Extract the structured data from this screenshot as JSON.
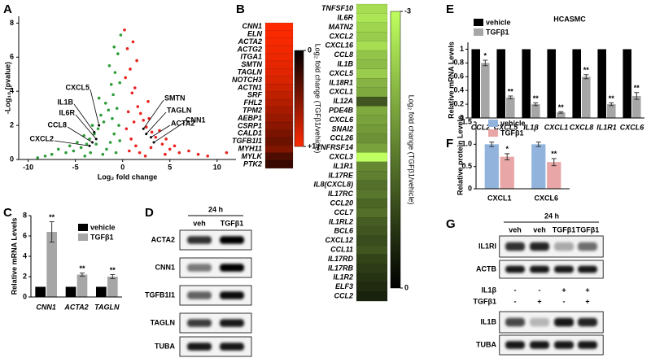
{
  "panel_labels": [
    "A",
    "B",
    "C",
    "D",
    "E",
    "F",
    "G"
  ],
  "chart_data": [
    {
      "type": "scatter",
      "xlabel": "Log₂ fold change",
      "ylabel": "-Log₁₀ (pvalue)",
      "xlim": [
        -11,
        12
      ],
      "ylim": [
        0,
        8.4
      ],
      "xticks": [
        -10,
        -5,
        0,
        5,
        10
      ],
      "yticks": [
        0,
        2,
        4,
        6,
        8
      ],
      "series": [
        {
          "color": "#2e9e3a",
          "x": [
            -0.3,
            -0.5,
            -0.2,
            -0.8,
            -1.0,
            -1.2,
            -0.6,
            -1.5,
            -1.8,
            -2.0,
            -2.3,
            -2.6,
            -3.0,
            -3.2,
            -3.5,
            -3.8,
            -4.1,
            -4.4,
            -4.8,
            -5.2,
            -5.6,
            -6.0,
            -6.8,
            -7.5,
            -8.2,
            -9.0,
            -0.4,
            -0.9,
            -1.3,
            -1.7,
            -2.1,
            -0.7,
            -1.1,
            -2.8,
            -3.4,
            -0.3,
            -1.4,
            -0.9,
            -2.5,
            -4.0
          ],
          "y": [
            4.5,
            6.2,
            7.3,
            5.1,
            3.8,
            4.4,
            3.0,
            2.9,
            3.3,
            2.2,
            2.6,
            1.8,
            1.5,
            2.0,
            1.2,
            0.9,
            1.4,
            0.7,
            1.0,
            0.5,
            0.8,
            0.4,
            0.6,
            0.3,
            0.2,
            0.1,
            2.0,
            1.5,
            1.0,
            0.6,
            0.3,
            0.4,
            2.4,
            0.9,
            0.4,
            1.1,
            5.5,
            6.6,
            3.6,
            0.2
          ]
        },
        {
          "color": "#e8231f",
          "x": [
            0.3,
            0.5,
            0.2,
            0.8,
            1.0,
            1.3,
            0.6,
            1.6,
            1.9,
            2.2,
            2.5,
            2.8,
            3.1,
            3.5,
            3.9,
            4.2,
            4.6,
            5.0,
            5.5,
            6.0,
            7.0,
            8.0,
            9.0,
            11.0,
            0.4,
            0.9,
            1.4,
            1.8,
            2.4,
            0.7,
            1.2,
            3.0,
            1.5,
            1.1,
            2.7,
            4.5
          ],
          "y": [
            4.8,
            6.5,
            7.6,
            5.3,
            3.9,
            4.2,
            2.8,
            3.1,
            2.7,
            2.3,
            1.9,
            2.4,
            1.6,
            1.3,
            1.7,
            0.9,
            1.2,
            0.6,
            0.8,
            0.4,
            0.5,
            0.3,
            0.2,
            0.4,
            1.8,
            1.2,
            0.8,
            0.4,
            0.2,
            0.5,
            2.2,
            0.7,
            5.8,
            6.9,
            3.4,
            0.3
          ]
        }
      ],
      "annotations": [
        {
          "text": "CXCL5",
          "x": -2.5,
          "y": 2.0
        },
        {
          "text": "IL1B",
          "x": -3.0,
          "y": 1.6
        },
        {
          "text": "IL6R",
          "x": -2.8,
          "y": 1.2
        },
        {
          "text": "CCL8",
          "x": -3.2,
          "y": 1.0
        },
        {
          "text": "CXCL2",
          "x": -3.5,
          "y": 0.8
        },
        {
          "text": "SMTN",
          "x": 2.2,
          "y": 1.8
        },
        {
          "text": "TAGLN",
          "x": 2.5,
          "y": 1.5
        },
        {
          "text": "ACTA2",
          "x": 3.0,
          "y": 1.3
        },
        {
          "text": "CNN1",
          "x": 3.3,
          "y": 1.0
        }
      ]
    },
    {
      "type": "bar",
      "ylabel": "Relative mRNA Levels",
      "categories": [
        "CNN1",
        "ACTA2",
        "TAGLN"
      ],
      "ylim": [
        0,
        8
      ],
      "yticks": [
        0,
        2,
        4,
        6,
        8
      ],
      "series": [
        {
          "name": "vehicle",
          "color": "#000000",
          "values": [
            1,
            1,
            1
          ]
        },
        {
          "name": "TGFβ1",
          "color": "#a6a6a6",
          "values": [
            6.4,
            2.2,
            2.0
          ],
          "errors": [
            1.0,
            0.15,
            0.2
          ],
          "significance": [
            "**",
            "**",
            "**"
          ]
        }
      ]
    },
    {
      "type": "bar",
      "title": "HCASMC",
      "ylabel": "Relative mRNA Levels",
      "categories": [
        "CCL2",
        "CXCL5",
        "IL1β",
        "CXCL1",
        "CXCL8",
        "IL1R1",
        "CXCL6"
      ],
      "ylim": [
        0,
        1.1
      ],
      "yticks": [
        0,
        0.2,
        0.4,
        0.6,
        0.8,
        1
      ],
      "series": [
        {
          "name": "vehicle",
          "color": "#000000",
          "values": [
            1,
            1,
            1,
            1,
            1,
            1,
            1
          ]
        },
        {
          "name": "TGFβ1",
          "color": "#a6a6a6",
          "values": [
            0.8,
            0.3,
            0.2,
            0.08,
            0.6,
            0.2,
            0.32
          ],
          "errors": [
            0.04,
            0.02,
            0.02,
            0.01,
            0.03,
            0.02,
            0.05
          ],
          "significance": [
            "*",
            "**",
            "**",
            "**",
            "**",
            "**",
            "**"
          ]
        }
      ]
    },
    {
      "type": "bar",
      "ylabel": "Relative protein Levels",
      "categories": [
        "CXCL1",
        "CXCL6"
      ],
      "ylim": [
        0,
        1.5
      ],
      "yticks": [
        0,
        0.5,
        {
          "value": 1,
          "label": "1.0"
        },
        1.5
      ],
      "series": [
        {
          "name": "vehicle",
          "color": "#92b4dc",
          "values": [
            1.0,
            1.0
          ],
          "errors": [
            0.05,
            0.05
          ]
        },
        {
          "name": "TGFβ1",
          "color": "#e8a6a6",
          "values": [
            0.72,
            0.6
          ],
          "errors": [
            0.07,
            0.08
          ],
          "significance": [
            "*",
            "**"
          ]
        }
      ]
    },
    {
      "type": "heatmap",
      "colorbar_label": "Log₂ fold change (TGFβ1/vehicle)",
      "rows": [
        "CNN1",
        "ELN",
        "ACTA2",
        "ACTG2",
        "ITGA1",
        "SMTN",
        "TAGLN",
        "NOTCH3",
        "ACTN1",
        "SRF",
        "FHL2",
        "TPM2",
        "AEBP1",
        "CSRP1",
        "CALD1",
        "TGFB1I1",
        "MYH11",
        "MYLK",
        "PTK2"
      ],
      "values": [
        1.0,
        0.98,
        0.97,
        0.95,
        0.93,
        0.9,
        0.88,
        0.85,
        0.8,
        0.75,
        0.7,
        0.65,
        0.6,
        0.55,
        0.48,
        0.42,
        0.5,
        0.3,
        0.22
      ],
      "clim": [
        0,
        1
      ],
      "cticks": [
        0,
        {
          "value": 1,
          "label": "+1"
        }
      ],
      "colors": [
        "#000000",
        "#ff2a00"
      ]
    },
    {
      "type": "heatmap",
      "colorbar_label": "Log₂ fold change (TGFβ1/vehicle)",
      "rows": [
        "TNFSF10",
        "IL6R",
        "MATN2",
        "CXCL2",
        "CXCL16",
        "CCL8",
        "IL1B",
        "CXCL5",
        "IL18R1",
        "CXCL1",
        "IL12A",
        "PDE4B",
        "CXCL6",
        "SNAI2",
        "CCL26",
        "TNFRSF14",
        "CXCL3",
        "IL1R1",
        "IL17RE",
        "IL8(CXCL8)",
        "IL17RC",
        "CCL20",
        "CCL7",
        "IL1RL2",
        "BCL6",
        "CXCL12",
        "CCL11",
        "IL17RD",
        "IL17RB",
        "IL1R2",
        "ELF3",
        "CCL2"
      ],
      "values": [
        -2.6,
        -2.7,
        -2.5,
        -2.4,
        -2.6,
        -2.3,
        -2.2,
        -2.4,
        -2.1,
        -2.0,
        -1.0,
        -2.0,
        -1.9,
        -1.8,
        -1.7,
        -1.9,
        -3.0,
        -1.6,
        -1.5,
        -1.3,
        -1.4,
        -1.2,
        -1.3,
        -1.1,
        -1.0,
        -0.9,
        -1.0,
        -0.8,
        -0.7,
        -0.6,
        -0.5,
        -0.4
      ],
      "clim": [
        -3,
        0
      ],
      "cticks": [
        -3,
        0
      ],
      "colors": [
        "#bfff5f",
        "#000000"
      ]
    }
  ],
  "blots": [
    {
      "time": "24 h",
      "lanes": [
        "veh",
        "TGFβ1"
      ],
      "rows": [
        "ACTA2",
        "CNN1",
        "TGFB1I1",
        "TAGLN",
        "TUBA"
      ]
    },
    {
      "time": "24 h",
      "lanes": [
        "veh",
        "veh",
        "TGFβ1",
        "TGFβ1"
      ],
      "rows": [
        "IL1RI",
        "ACTB"
      ],
      "treatments": [
        {
          "name": "IL1β",
          "signs": [
            "-",
            "-",
            "+",
            "+"
          ]
        },
        {
          "name": "TGFβ1",
          "signs": [
            "-",
            "+",
            "-",
            "+"
          ]
        }
      ],
      "lower_rows": [
        "IL1B",
        "TUBA"
      ]
    }
  ]
}
